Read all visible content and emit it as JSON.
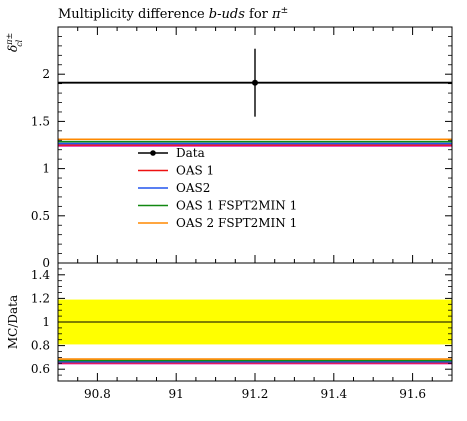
{
  "chart_data": {
    "type": "line",
    "title": "Multiplicity difference b-uds for π±",
    "title_parts": {
      "prefix": "Multiplicity difference ",
      "emph": "b-uds",
      "middle": " for ",
      "symbol": "π",
      "sup": "±"
    },
    "ylabel_top": {
      "main": "δ",
      "sup": "π±",
      "sub": "cl"
    },
    "ylabel_bottom": "MC/Data",
    "xlim": [
      90.7,
      91.7
    ],
    "ylim_top": [
      0,
      2.5
    ],
    "ylim_bottom": [
      0.5,
      1.5
    ],
    "x_ticks": [
      90.8,
      91.0,
      91.2,
      91.4,
      91.6
    ],
    "x_tick_labels": [
      "90.8",
      "91",
      "91.2",
      "91.4",
      "91.6"
    ],
    "y_ticks_top": [
      0,
      0.5,
      1,
      1.5,
      2
    ],
    "y_tick_labels_top": [
      "0",
      "0.5",
      "1",
      "1.5",
      "2"
    ],
    "y_ticks_bottom": [
      0.6,
      0.8,
      1,
      1.2,
      1.4
    ],
    "y_tick_labels_bottom": [
      "0.6",
      "0.8",
      "1",
      "1.2",
      "1.4"
    ],
    "data": {
      "name": "Data",
      "x": 91.2,
      "y": 1.91,
      "yerr_low": 0.36,
      "yerr_high": 0.36,
      "color": "#000000"
    },
    "series": [
      {
        "name": "OAS 1",
        "color": "#ee1111",
        "value": 1.25,
        "ratio": 0.655
      },
      {
        "name": "OAS2",
        "color": "#2255ee",
        "value": 1.265,
        "ratio": 0.663
      },
      {
        "name": "OAS 1 FSPT2MIN 1",
        "color": "#118811",
        "value": 1.285,
        "ratio": 0.673
      },
      {
        "name": "OAS 2 FSPT2MIN 1",
        "color": "#ff8800",
        "value": 1.31,
        "ratio": 0.686
      }
    ],
    "mc_extra_line": {
      "color": "#dd22aa",
      "value": 1.24,
      "ratio": 0.648
    },
    "ratio_band": {
      "low": 0.81,
      "high": 1.19,
      "color": "#ffff00"
    },
    "legend_position": "center-left"
  }
}
